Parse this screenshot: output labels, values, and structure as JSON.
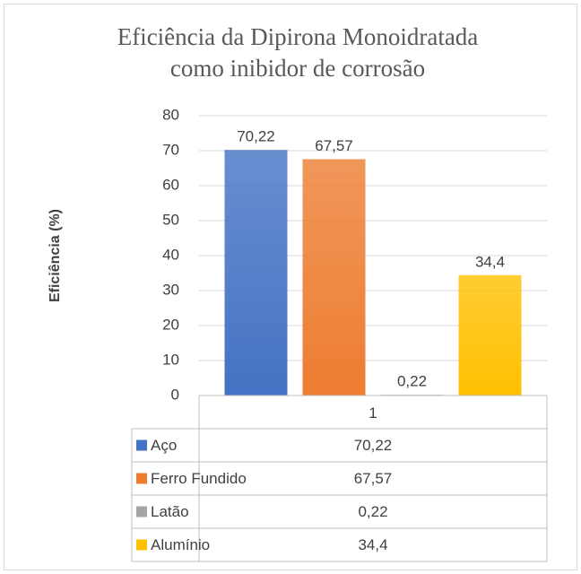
{
  "chart_data": {
    "type": "bar",
    "title": [
      "Eficiência da Dipirona Monoidratada",
      "como inibidor de corrosão"
    ],
    "y_label": "Eficiência (%)",
    "categories": [
      "1"
    ],
    "series": [
      {
        "name": "Aço",
        "color": "#4472c4",
        "values": [
          70.22
        ],
        "value_labels": [
          "70,22"
        ]
      },
      {
        "name": "Ferro Fundido",
        "color": "#ed7d31",
        "values": [
          67.57
        ],
        "value_labels": [
          "67,57"
        ]
      },
      {
        "name": "Latão",
        "color": "#a5a5a5",
        "values": [
          0.22
        ],
        "value_labels": [
          "0,22"
        ]
      },
      {
        "name": "Alumínio",
        "color": "#ffc000",
        "values": [
          34.4
        ],
        "value_labels": [
          "34,4"
        ]
      }
    ],
    "ylim": [
      0,
      80
    ],
    "yticks": [
      0,
      10,
      20,
      30,
      40,
      50,
      60,
      70,
      80
    ],
    "grid": true,
    "data_table": true
  }
}
